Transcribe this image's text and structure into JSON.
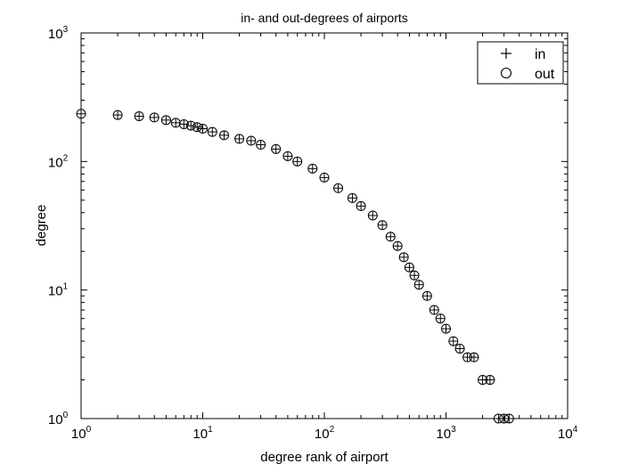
{
  "chart_data": {
    "type": "scatter",
    "title": "in- and out-degrees of airports",
    "xlabel": "degree rank of airport",
    "ylabel": "degree",
    "xscale": "log",
    "yscale": "log",
    "xlim": [
      1,
      10000
    ],
    "ylim": [
      1,
      1000
    ],
    "grid": false,
    "legend_position": "top-right",
    "x_ticks": [
      {
        "base": "10",
        "exp": "0",
        "value": 1
      },
      {
        "base": "10",
        "exp": "1",
        "value": 10
      },
      {
        "base": "10",
        "exp": "2",
        "value": 100
      },
      {
        "base": "10",
        "exp": "3",
        "value": 1000
      },
      {
        "base": "10",
        "exp": "4",
        "value": 10000
      }
    ],
    "y_ticks": [
      {
        "base": "10",
        "exp": "0",
        "value": 1
      },
      {
        "base": "10",
        "exp": "1",
        "value": 10
      },
      {
        "base": "10",
        "exp": "2",
        "value": 100
      },
      {
        "base": "10",
        "exp": "3",
        "value": 1000
      }
    ],
    "series": [
      {
        "name": "in",
        "marker": "plus",
        "x": [
          1,
          2,
          3,
          4,
          5,
          6,
          7,
          8,
          9,
          10,
          12,
          15,
          20,
          25,
          30,
          40,
          50,
          60,
          80,
          100,
          130,
          170,
          200,
          250,
          300,
          350,
          400,
          450,
          500,
          550,
          600,
          700,
          800,
          900,
          1000,
          1150,
          1300,
          1500,
          1700,
          2000,
          2300,
          2700,
          3000,
          3300
        ],
        "y": [
          235,
          230,
          225,
          220,
          210,
          200,
          195,
          190,
          185,
          180,
          170,
          160,
          150,
          145,
          135,
          125,
          110,
          100,
          88,
          75,
          62,
          52,
          45,
          38,
          32,
          26,
          22,
          18,
          15,
          13,
          11,
          9,
          7,
          6,
          5,
          4,
          3.5,
          3,
          3,
          2,
          2,
          1,
          1,
          1
        ]
      },
      {
        "name": "out",
        "marker": "circle",
        "x": [
          1,
          2,
          3,
          4,
          5,
          6,
          7,
          8,
          9,
          10,
          12,
          15,
          20,
          25,
          30,
          40,
          50,
          60,
          80,
          100,
          130,
          170,
          200,
          250,
          300,
          350,
          400,
          450,
          500,
          550,
          600,
          700,
          800,
          900,
          1000,
          1150,
          1300,
          1500,
          1700,
          2000,
          2300,
          2700,
          3000,
          3300
        ],
        "y": [
          235,
          230,
          225,
          220,
          210,
          200,
          195,
          190,
          185,
          180,
          170,
          160,
          150,
          145,
          135,
          125,
          110,
          100,
          88,
          75,
          62,
          52,
          45,
          38,
          32,
          26,
          22,
          18,
          15,
          13,
          11,
          9,
          7,
          6,
          5,
          4,
          3.5,
          3,
          3,
          2,
          2,
          1,
          1,
          1
        ]
      }
    ]
  }
}
